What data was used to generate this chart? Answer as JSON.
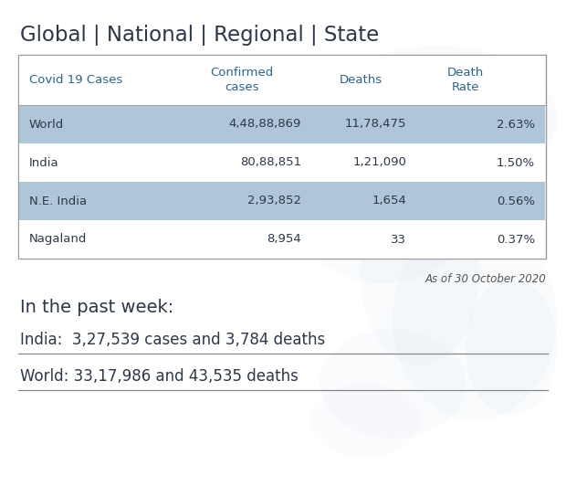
{
  "title": "Global | National | Regional | State",
  "title_color": "#2d3748",
  "bg_color": "#ffffff",
  "table_border_color": "#999999",
  "header_text_color": "#2a6496",
  "row_bg_shaded": "#aec6d8",
  "row_bg_white": "#ffffff",
  "table_text_color": "#2d3748",
  "col_headers": [
    "Covid 19 Cases",
    "Confirmed\ncases",
    "Deaths",
    "Death\nRate"
  ],
  "rows": [
    [
      "World",
      "4,48,88,869",
      "11,78,475",
      "2.63%"
    ],
    [
      "India",
      "80,88,851",
      "1,21,090",
      "1.50%"
    ],
    [
      "N.E. India",
      "2,93,852",
      "1,654",
      "0.56%"
    ],
    [
      "Nagaland",
      "8,954",
      "33",
      "0.37%"
    ]
  ],
  "shaded_rows": [
    0,
    2
  ],
  "date_note": "As of 30 October 2020",
  "past_week_header": "In the past week:",
  "past_week_lines": [
    "India:  3,27,539 cases and 3,784 deaths",
    "World: 33,17,986 and 43,535 deaths"
  ],
  "past_week_color": "#2d3748",
  "map_blobs": [
    [
      480,
      130,
      260,
      160,
      0.12
    ],
    [
      420,
      220,
      200,
      180,
      0.1
    ],
    [
      520,
      350,
      180,
      220,
      0.1
    ],
    [
      430,
      420,
      160,
      120,
      0.08
    ]
  ]
}
